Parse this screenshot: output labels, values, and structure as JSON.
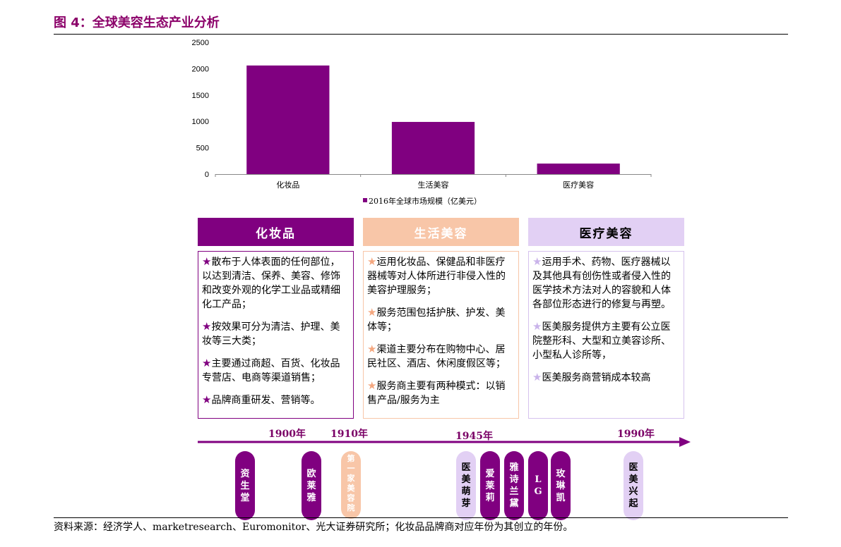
{
  "figure": {
    "title": "图 4：全球美容生态产业分析"
  },
  "chart_data": {
    "type": "bar",
    "categories": [
      "化妆品",
      "生活美容",
      "医疗美容"
    ],
    "series": [
      {
        "name": "2016年全球市场规模（亿美元）",
        "values": [
          2060,
          990,
          200
        ],
        "color": "#800080"
      }
    ],
    "yticks": [
      "0",
      "500",
      "1000",
      "1500",
      "2000",
      "2500"
    ],
    "ylim": [
      0,
      2500
    ],
    "legend_position": "bottom",
    "grid": false
  },
  "boxes": [
    {
      "title": "化妆品",
      "header_bg": "#800080",
      "header_color": "#ffffff",
      "border_color": "#800080",
      "star_color": "#800080",
      "star": "★",
      "items": [
        "散布于人体表面的任何部位，以达到清洁、保养、美容、修饰和改变外观的化学工业品或精细化工产品；",
        "按效果可分为清洁、护理、美妆等三大类；",
        "主要通过商超、百货、化妆品专营店、电商等渠道销售；",
        "品牌商重研发、营销等。"
      ]
    },
    {
      "title": "生活美容",
      "header_bg": "#f8c6a8",
      "header_color": "#ffffff",
      "border_color": "#f8c6a8",
      "star_color": "#f4a77f",
      "star": "★",
      "items": [
        "运用化妆品、保健品和非医疗器械等对人体所进行非侵入性的美容护理服务；",
        "服务范围包括护肤、护发、美体等；",
        "渠道主要分布在购物中心、居民社区、酒店、休闲度假区等；",
        "服务商主要有两种模式：以销售产品/服务为主"
      ]
    },
    {
      "title": "医疗美容",
      "header_bg": "#e2d0f4",
      "header_color": "#000000",
      "border_color": "#d6c2ee",
      "star_color": "#c9b3ea",
      "star": "★",
      "items": [
        "运用手术、药物、医疗器械以及其他具有创伤性或者侵入性的医学技术方法对人的容貌和人体各部位形态进行的修复与再塑。",
        "医美服务提供方主要有公立医院整形科、大型和立美容诊所、小型私人诊所等，",
        "医美服务商营销成本较高"
      ]
    }
  ],
  "timeline": {
    "years": [
      "1900年",
      "1910年",
      "1945年",
      "1990年"
    ],
    "arrow_color": "#800080",
    "pills": [
      {
        "text": "资生堂",
        "bg": "#800080",
        "color": "#ffffff"
      },
      {
        "text": "欧莱雅",
        "bg": "#800080",
        "color": "#ffffff"
      },
      {
        "text": "第一家美容院",
        "bg": "#f8c6a8",
        "color": "#ffffff"
      },
      {
        "text": "医美萌芽",
        "bg": "#e2d0f4",
        "color": "#000000"
      },
      {
        "text": "爱莱莉",
        "bg": "#800080",
        "color": "#ffffff"
      },
      {
        "text": "雅诗兰黛",
        "bg": "#800080",
        "color": "#ffffff"
      },
      {
        "text": "LG",
        "bg": "#800080",
        "color": "#ffffff"
      },
      {
        "text": "玫琳凯",
        "bg": "#800080",
        "color": "#ffffff"
      },
      {
        "text": "医美兴起",
        "bg": "#e2d0f4",
        "color": "#000000"
      }
    ]
  },
  "source": "资料来源：经济学人、marketresearch、Euromonitor、光大证券研究所；化妆品品牌商对应年份为其创立的年份。"
}
